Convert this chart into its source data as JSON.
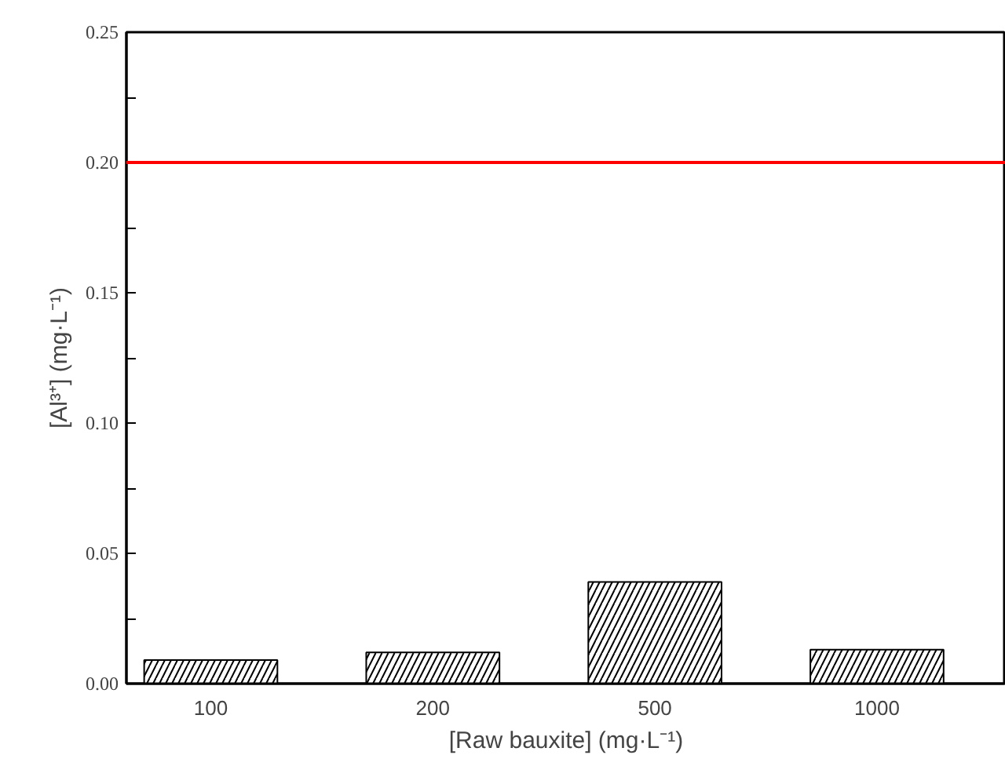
{
  "chart_data": {
    "type": "bar",
    "xlabel": "[Raw bauxite] (mg·L⁻¹)",
    "ylabel": "[Al³⁺] (mg·L⁻¹)",
    "categories": [
      "100",
      "200",
      "500",
      "1000"
    ],
    "values": [
      0.009,
      0.012,
      0.039,
      0.013
    ],
    "color": "#ffffff",
    "ylim": [
      0,
      0.25
    ],
    "yticks": [
      {
        "value": 0,
        "label": "0.00"
      },
      {
        "value": 0.025,
        "label": null
      },
      {
        "value": 0.05,
        "label": "0.05"
      },
      {
        "value": 0.075,
        "label": null
      },
      {
        "value": 0.1,
        "label": "0.10"
      },
      {
        "value": 0.125,
        "label": null
      },
      {
        "value": 0.15,
        "label": "0.15"
      },
      {
        "value": 0.175,
        "label": null
      },
      {
        "value": 0.2,
        "label": "0.20"
      },
      {
        "value": 0.225,
        "label": null
      },
      {
        "value": 0.25,
        "label": "0.25"
      }
    ],
    "ref_lines": [
      {
        "axis": "y",
        "value": 0.2,
        "color": "#ff0000"
      }
    ],
    "grid": false
  }
}
